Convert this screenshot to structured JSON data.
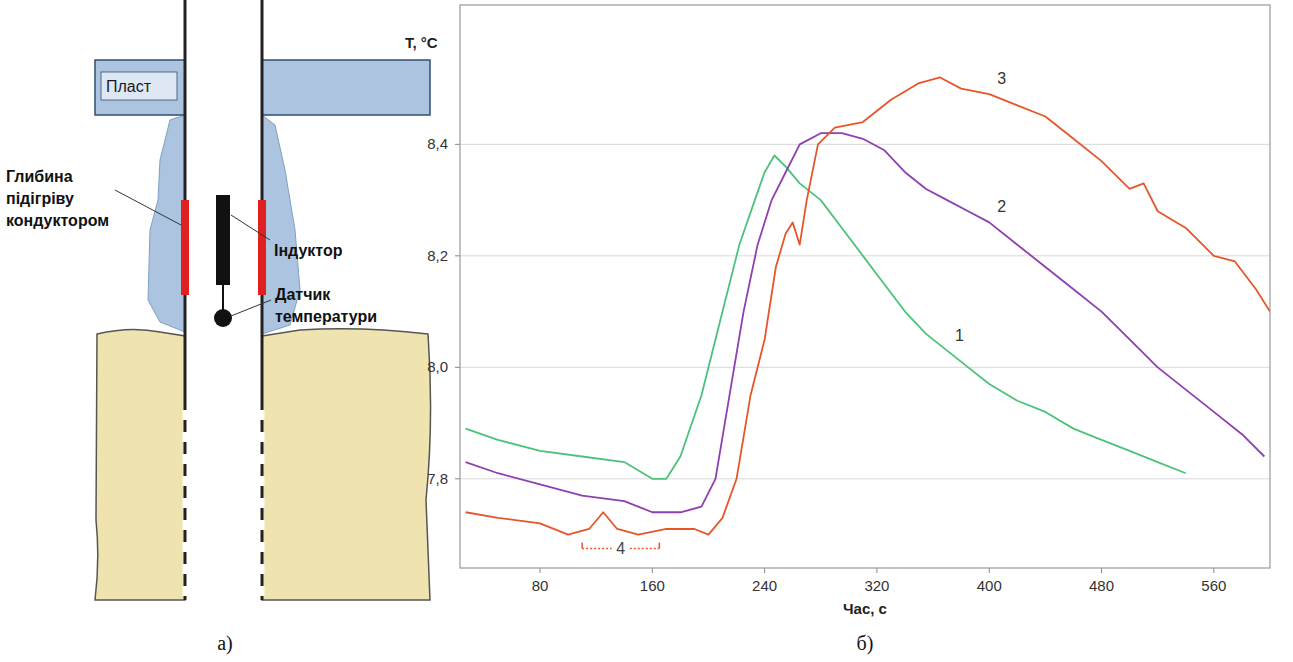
{
  "chart_data": {
    "type": "line",
    "x_label": "Час, с",
    "y_label": "T, °C",
    "xlim": [
      23,
      600
    ],
    "ylim": [
      7.64,
      8.65
    ],
    "xticks": [
      80,
      160,
      240,
      320,
      400,
      480,
      560
    ],
    "yticks": [
      {
        "value": 7.8,
        "label": "7,8"
      },
      {
        "value": 8.0,
        "label": "8,0"
      },
      {
        "value": 8.2,
        "label": "8,2"
      },
      {
        "value": 8.4,
        "label": "8,4"
      }
    ],
    "grid": true,
    "series": [
      {
        "name": "1",
        "color": "#4cc27a",
        "x": [
          27,
          50,
          80,
          110,
          140,
          160,
          170,
          180,
          195,
          210,
          222,
          233,
          240,
          247,
          255,
          265,
          280,
          295,
          310,
          325,
          340,
          355,
          370,
          385,
          400,
          420,
          440,
          460,
          480,
          500,
          520,
          540
        ],
        "values": [
          7.89,
          7.87,
          7.85,
          7.84,
          7.83,
          7.8,
          7.8,
          7.84,
          7.95,
          8.1,
          8.22,
          8.3,
          8.35,
          8.38,
          8.36,
          8.33,
          8.3,
          8.25,
          8.2,
          8.15,
          8.1,
          8.06,
          8.03,
          8.0,
          7.97,
          7.94,
          7.92,
          7.89,
          7.87,
          7.85,
          7.83,
          7.81
        ]
      },
      {
        "name": "2",
        "color": "#8e3fb0",
        "x": [
          27,
          50,
          80,
          110,
          140,
          160,
          180,
          195,
          205,
          215,
          225,
          235,
          245,
          255,
          265,
          280,
          295,
          310,
          325,
          340,
          355,
          370,
          385,
          400,
          420,
          440,
          460,
          480,
          500,
          520,
          540,
          560,
          580,
          596
        ],
        "values": [
          7.83,
          7.81,
          7.79,
          7.77,
          7.76,
          7.74,
          7.74,
          7.75,
          7.8,
          7.95,
          8.1,
          8.22,
          8.3,
          8.35,
          8.4,
          8.42,
          8.42,
          8.41,
          8.39,
          8.35,
          8.32,
          8.3,
          8.28,
          8.26,
          8.22,
          8.18,
          8.14,
          8.1,
          8.05,
          8.0,
          7.96,
          7.92,
          7.88,
          7.84
        ]
      },
      {
        "name": "3",
        "color": "#e5562b",
        "x": [
          27,
          50,
          80,
          100,
          115,
          125,
          135,
          150,
          170,
          190,
          200,
          210,
          220,
          230,
          240,
          248,
          255,
          260,
          265,
          270,
          278,
          290,
          310,
          330,
          350,
          365,
          380,
          400,
          420,
          440,
          460,
          480,
          500,
          510,
          520,
          540,
          560,
          575,
          590,
          600
        ],
        "values": [
          7.74,
          7.73,
          7.72,
          7.7,
          7.71,
          7.74,
          7.71,
          7.7,
          7.71,
          7.71,
          7.7,
          7.73,
          7.8,
          7.95,
          8.05,
          8.18,
          8.24,
          8.26,
          8.22,
          8.3,
          8.4,
          8.43,
          8.44,
          8.48,
          8.51,
          8.52,
          8.5,
          8.49,
          8.47,
          8.45,
          8.41,
          8.37,
          8.32,
          8.33,
          8.28,
          8.25,
          8.2,
          8.19,
          8.14,
          8.1
        ]
      }
    ],
    "annotations": [
      {
        "text": "4",
        "x": [
          110,
          165
        ],
        "y": 7.675,
        "color": "#e5562b"
      }
    ]
  },
  "diagram": {
    "layer": "Пласт",
    "heating_depth": "Глибина підігріву кондуктором",
    "inductor": "Індуктор",
    "sensor": "Датчик температури"
  },
  "panels": {
    "a": "а)",
    "b": "б)"
  }
}
